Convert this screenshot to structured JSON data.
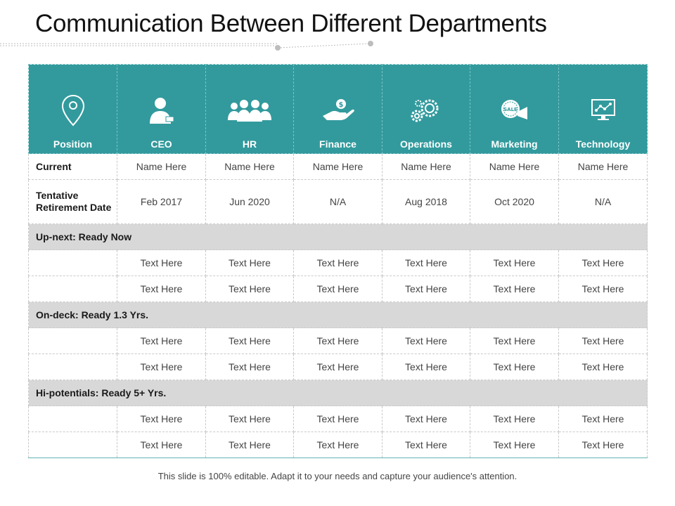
{
  "title": "Communication Between Different Departments",
  "accent_color": "#329a9d",
  "section_color": "#d8d8d8",
  "columns": [
    {
      "label": "Position",
      "icon": "location-pin-icon"
    },
    {
      "label": "CEO",
      "icon": "ceo-person-icon"
    },
    {
      "label": "HR",
      "icon": "people-group-icon"
    },
    {
      "label": "Finance",
      "icon": "hand-coin-icon"
    },
    {
      "label": "Operations",
      "icon": "gears-icon"
    },
    {
      "label": "Marketing",
      "icon": "sale-megaphone-icon"
    },
    {
      "label": "Technology",
      "icon": "monitor-chart-icon"
    }
  ],
  "current": {
    "label": "Current",
    "values": [
      "Name Here",
      "Name Here",
      "Name Here",
      "Name Here",
      "Name Here",
      "Name Here"
    ]
  },
  "retirement": {
    "label": "Tentative Retirement Date",
    "values": [
      "Feb 2017",
      "Jun 2020",
      "N/A",
      "Aug 2018",
      "Oct 2020",
      "N/A"
    ]
  },
  "sections": [
    {
      "label": "Up-next: Ready Now",
      "rows": [
        [
          "Text Here",
          "Text Here",
          "Text Here",
          "Text Here",
          "Text Here",
          "Text Here"
        ],
        [
          "Text Here",
          "Text Here",
          "Text Here",
          "Text Here",
          "Text Here",
          "Text Here"
        ]
      ]
    },
    {
      "label": "On-deck: Ready 1.3 Yrs.",
      "rows": [
        [
          "Text Here",
          "Text Here",
          "Text Here",
          "Text Here",
          "Text Here",
          "Text Here"
        ],
        [
          "Text Here",
          "Text Here",
          "Text Here",
          "Text Here",
          "Text Here",
          "Text Here"
        ]
      ]
    },
    {
      "label": "Hi-potentials: Ready 5+ Yrs.",
      "rows": [
        [
          "Text Here",
          "Text Here",
          "Text Here",
          "Text Here",
          "Text Here",
          "Text Here"
        ],
        [
          "Text Here",
          "Text Here",
          "Text Here",
          "Text Here",
          "Text Here",
          "Text Here"
        ]
      ]
    }
  ],
  "footer": "This slide is 100% editable. Adapt it to your needs and capture your audience's attention."
}
